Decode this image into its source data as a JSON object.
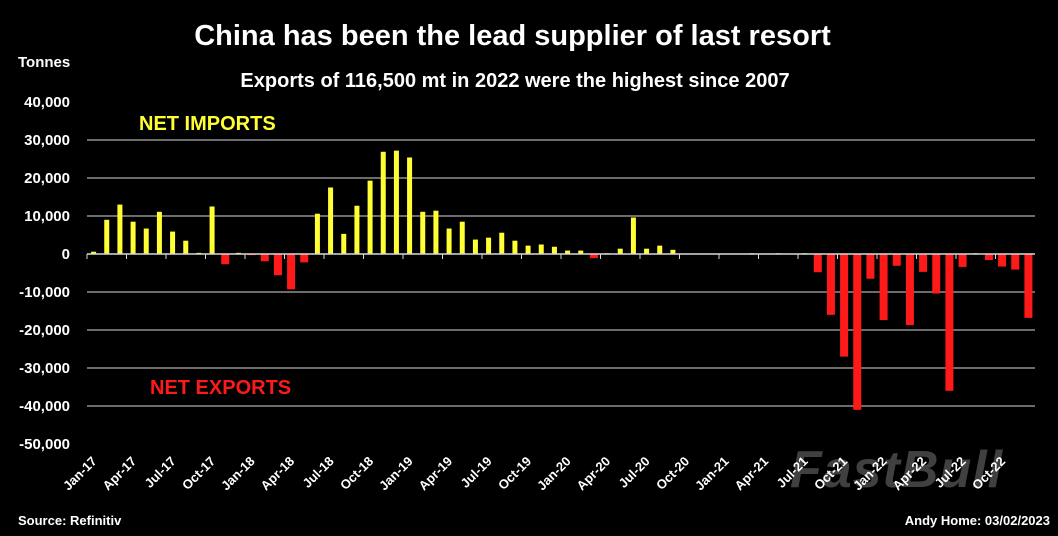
{
  "chart_data": {
    "type": "bar",
    "title": "China has been the lead supplier of last resort",
    "subtitle": "Exports of 116,500 mt in 2022 were the highest since 2007",
    "ylabel": "Tonnes",
    "xlabel": "",
    "ylim": [
      -50000,
      40000
    ],
    "yticks": [
      40000,
      30000,
      20000,
      10000,
      0,
      -10000,
      -20000,
      -30000,
      -40000,
      -50000
    ],
    "ytick_labels": [
      "40,000",
      "30,000",
      "20,000",
      "10,000",
      "0",
      "-10,000",
      "-20,000",
      "-30,000",
      "-40,000",
      "-50,000"
    ],
    "grid": true,
    "categories": [
      "Jan-17",
      "Feb-17",
      "Mar-17",
      "Apr-17",
      "May-17",
      "Jun-17",
      "Jul-17",
      "Aug-17",
      "Sep-17",
      "Oct-17",
      "Nov-17",
      "Dec-17",
      "Jan-18",
      "Feb-18",
      "Mar-18",
      "Apr-18",
      "May-18",
      "Jun-18",
      "Jul-18",
      "Aug-18",
      "Sep-18",
      "Oct-18",
      "Nov-18",
      "Dec-18",
      "Jan-19",
      "Feb-19",
      "Mar-19",
      "Apr-19",
      "May-19",
      "Jun-19",
      "Jul-19",
      "Aug-19",
      "Sep-19",
      "Oct-19",
      "Nov-19",
      "Dec-19",
      "Jan-20",
      "Feb-20",
      "Mar-20",
      "Apr-20",
      "May-20",
      "Jun-20",
      "Jul-20",
      "Aug-20",
      "Sep-20",
      "Oct-20",
      "Nov-20",
      "Dec-20",
      "Jan-21",
      "Feb-21",
      "Mar-21",
      "Apr-21",
      "May-21",
      "Jun-21",
      "Jul-21",
      "Aug-21",
      "Sep-21",
      "Oct-21",
      "Nov-21",
      "Dec-21",
      "Jan-22",
      "Feb-22",
      "Mar-22",
      "Apr-22",
      "May-22",
      "Jun-22",
      "Jul-22",
      "Aug-22",
      "Sep-22",
      "Oct-22",
      "Nov-22",
      "Dec-22"
    ],
    "xtick_labels": [
      "Jan-17",
      "Apr-17",
      "Jul-17",
      "Oct-17",
      "Jan-18",
      "Apr-18",
      "Jul-18",
      "Oct-18",
      "Jan-19",
      "Apr-19",
      "Jul-19",
      "Oct-19",
      "Jan-20",
      "Apr-20",
      "Jul-20",
      "Oct-20",
      "Jan-21",
      "Apr-21",
      "Jul-21",
      "Oct-21",
      "Jan-22",
      "Apr-22",
      "Jul-22",
      "Oct-22"
    ],
    "values": [
      600,
      9000,
      13000,
      8500,
      6700,
      11100,
      5900,
      3500,
      300,
      12500,
      -2700,
      300,
      -300,
      -1900,
      -5600,
      -9300,
      -2200,
      10600,
      17500,
      5300,
      12700,
      19300,
      26900,
      27200,
      25400,
      11100,
      11400,
      6700,
      8500,
      3800,
      4300,
      5600,
      3500,
      2200,
      2500,
      1900,
      900,
      900,
      -1100,
      200,
      1400,
      9600,
      1400,
      2200,
      1100,
      0,
      0,
      0,
      0,
      0,
      200,
      0,
      200,
      0,
      200,
      -4800,
      -16000,
      -27000,
      -41000,
      -6500,
      -17400,
      -3100,
      -18700,
      -4700,
      -10400,
      -36000,
      -3400,
      200,
      -1600,
      -3300,
      -4100,
      -16800
    ],
    "annotations": [
      "NET IMPORTS",
      "NET EXPORTS"
    ],
    "colors": {
      "positive": "#ffff33",
      "negative": "#ff1a1a",
      "grid": "#d9d9d9",
      "background": "#000000"
    }
  },
  "footer": {
    "source": "Source: Refinitiv",
    "credit": "Andy Home: 03/02/2023"
  },
  "watermark": "FastBull"
}
